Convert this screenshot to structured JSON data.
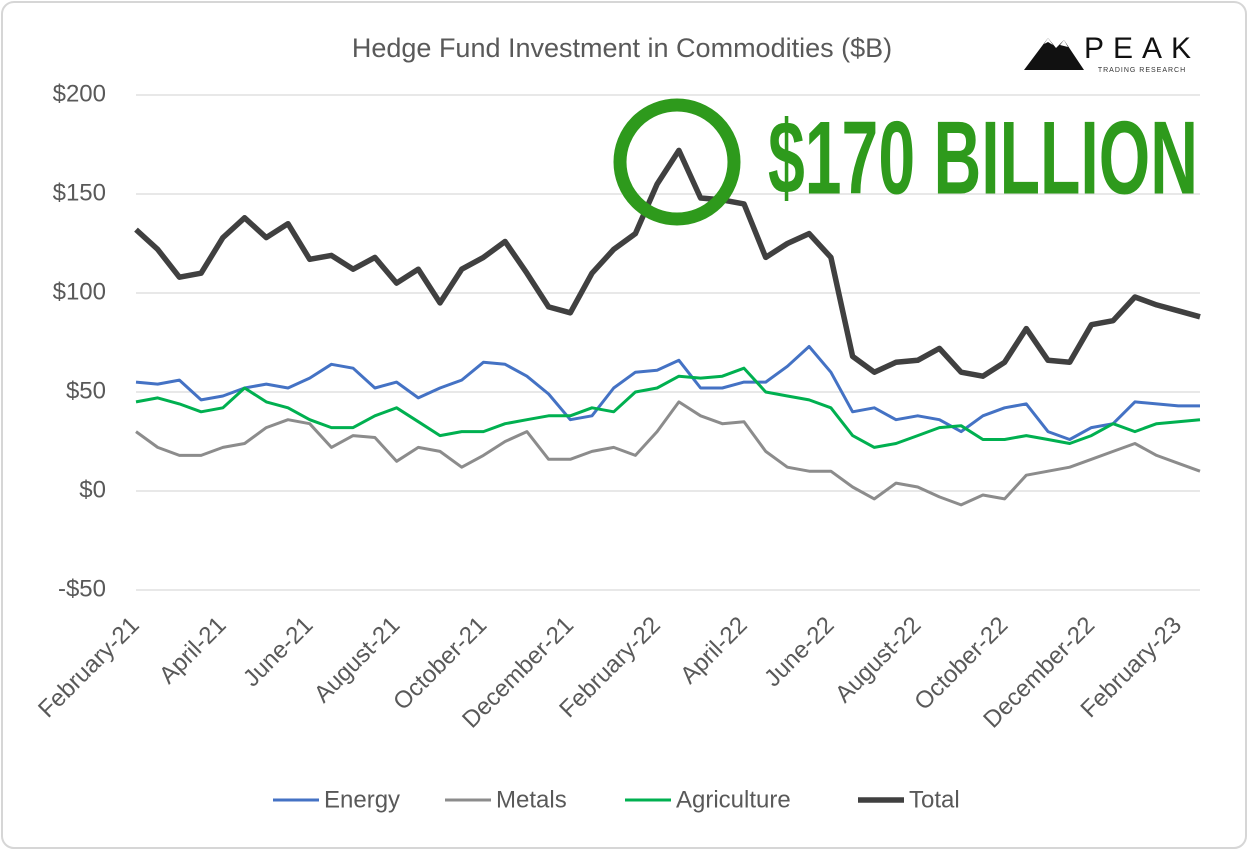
{
  "chart_data": {
    "type": "line",
    "title": "Hedge Fund Investment in Commodities ($B)",
    "annotation": "$170 BILLION",
    "logo": {
      "name": "PEAK",
      "tagline": "TRADING RESEARCH"
    },
    "categories": [
      "February-21",
      null,
      null,
      null,
      "April-21",
      null,
      null,
      null,
      "June-21",
      null,
      null,
      null,
      "August-21",
      null,
      null,
      null,
      "October-21",
      null,
      null,
      null,
      "December-21",
      null,
      null,
      null,
      "February-22",
      null,
      null,
      null,
      "April-22",
      null,
      null,
      null,
      "June-22",
      null,
      null,
      null,
      "August-22",
      null,
      null,
      null,
      "October-22",
      null,
      null,
      null,
      "December-22",
      null,
      null,
      null,
      "February-23",
      null
    ],
    "series": [
      {
        "name": "Energy",
        "color": "#4472c4",
        "values": [
          55,
          54,
          56,
          46,
          48,
          52,
          54,
          52,
          57,
          64,
          62,
          52,
          55,
          47,
          52,
          56,
          65,
          64,
          58,
          49,
          36,
          38,
          52,
          60,
          61,
          66,
          52,
          52,
          55,
          55,
          63,
          73,
          60,
          40,
          42,
          36,
          38,
          36,
          30,
          38,
          42,
          44,
          30,
          26,
          32,
          34,
          45,
          44,
          43,
          43
        ]
      },
      {
        "name": "Metals",
        "color": "#8c8c8c",
        "values": [
          30,
          22,
          18,
          18,
          22,
          24,
          32,
          36,
          34,
          22,
          28,
          27,
          15,
          22,
          20,
          12,
          18,
          25,
          30,
          16,
          16,
          20,
          22,
          18,
          30,
          45,
          38,
          34,
          35,
          20,
          12,
          10,
          10,
          2,
          -4,
          4,
          2,
          -3,
          -7,
          -2,
          -4,
          8,
          10,
          12,
          16,
          20,
          24,
          18,
          14,
          10
        ]
      },
      {
        "name": "Agriculture",
        "color": "#00b050",
        "values": [
          45,
          47,
          44,
          40,
          42,
          52,
          45,
          42,
          36,
          32,
          32,
          38,
          42,
          35,
          28,
          30,
          30,
          34,
          36,
          38,
          38,
          42,
          40,
          50,
          52,
          58,
          57,
          58,
          62,
          50,
          48,
          46,
          42,
          28,
          22,
          24,
          28,
          32,
          33,
          26,
          26,
          28,
          26,
          24,
          28,
          34,
          30,
          34,
          35,
          36
        ]
      },
      {
        "name": "Total",
        "color": "#404040",
        "values": [
          132,
          122,
          108,
          110,
          128,
          138,
          128,
          135,
          117,
          119,
          112,
          118,
          105,
          112,
          95,
          112,
          118,
          126,
          110,
          93,
          90,
          110,
          122,
          130,
          155,
          172,
          148,
          147,
          145,
          118,
          125,
          130,
          118,
          68,
          60,
          65,
          66,
          72,
          60,
          58,
          65,
          82,
          66,
          65,
          84,
          86,
          98,
          94,
          91,
          88
        ]
      }
    ],
    "ylim": [
      -50,
      200
    ],
    "yticks": [
      {
        "value": -50,
        "label": "-$50"
      },
      {
        "value": 0,
        "label": "$0"
      },
      {
        "value": 50,
        "label": "$50"
      },
      {
        "value": 100,
        "label": "$100"
      },
      {
        "value": 150,
        "label": "$150"
      },
      {
        "value": 200,
        "label": "$200"
      }
    ],
    "grid": true,
    "legend": "bottom"
  }
}
